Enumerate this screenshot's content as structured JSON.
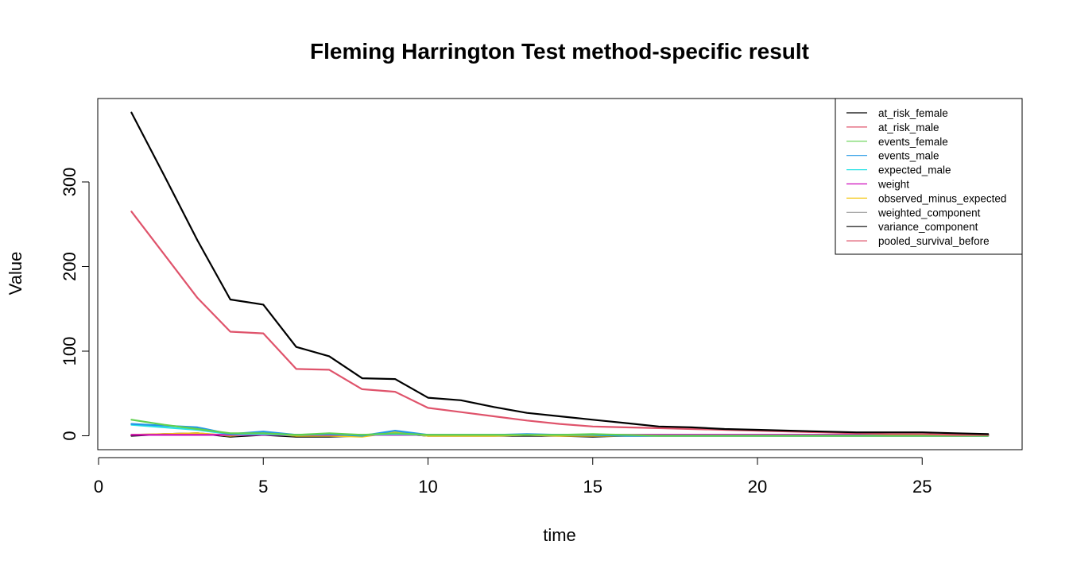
{
  "chart_data": {
    "type": "line",
    "title": "Fleming Harrington Test method-specific result",
    "xlabel": "time",
    "ylabel": "Value",
    "xlim": [
      0,
      28
    ],
    "ylim": [
      -15,
      400
    ],
    "xticks": [
      0,
      5,
      10,
      15,
      20,
      25
    ],
    "yticks": [
      0,
      100,
      200,
      300
    ],
    "legend_position": "top-right",
    "grid": false,
    "series": [
      {
        "name": "at_risk_female",
        "color": "#000000",
        "x": [
          1,
          2,
          3,
          4,
          5,
          6,
          7,
          8,
          9,
          10,
          11,
          12,
          13,
          14,
          15,
          16,
          17,
          18,
          19,
          20,
          21,
          22,
          23,
          24,
          25,
          26,
          27
        ],
        "values": [
          382,
          307,
          231,
          161,
          155,
          105,
          94,
          68,
          67,
          45,
          42,
          34,
          27,
          23,
          19,
          15,
          11,
          10,
          8,
          7,
          6,
          5,
          4,
          4,
          4,
          3,
          2
        ]
      },
      {
        "name": "at_risk_male",
        "color": "#DF536B",
        "x": [
          1,
          2,
          3,
          4,
          5,
          6,
          7,
          8,
          9,
          10,
          11,
          12,
          13,
          14,
          15,
          16,
          17,
          18,
          19,
          20,
          21,
          22,
          23,
          24,
          25,
          26,
          27
        ],
        "values": [
          265,
          214,
          163,
          123,
          121,
          79,
          78,
          55,
          52,
          33,
          28,
          23,
          18,
          14,
          11,
          10,
          9,
          8,
          7,
          6,
          5,
          4,
          3,
          2,
          2,
          1,
          1
        ]
      },
      {
        "name": "events_female",
        "color": "#61D04F",
        "x": [
          1,
          2,
          3,
          4,
          5,
          6,
          7,
          8,
          9,
          10,
          11,
          12,
          13,
          14,
          15,
          16,
          17,
          18,
          19,
          20,
          21,
          22,
          23,
          24,
          25,
          26,
          27
        ],
        "values": [
          19,
          13,
          8,
          3,
          3,
          1,
          3,
          1,
          3,
          1,
          1,
          1,
          1,
          1,
          2,
          1,
          0,
          0,
          0,
          0,
          0,
          0,
          0,
          0,
          0,
          0,
          0
        ]
      },
      {
        "name": "events_male",
        "color": "#2297E6",
        "x": [
          1,
          2,
          3,
          4,
          5,
          6,
          7,
          8,
          9,
          10,
          11,
          12,
          13,
          14,
          15,
          16,
          17,
          18,
          19,
          20,
          21,
          22,
          23,
          24,
          25,
          26,
          27
        ],
        "values": [
          14,
          12,
          10,
          2,
          5,
          1,
          2,
          0,
          6,
          1,
          1,
          1,
          2,
          1,
          1,
          0,
          0,
          0,
          0,
          0,
          0,
          0,
          0,
          0,
          0,
          0,
          0
        ]
      },
      {
        "name": "expected_male",
        "color": "#28E2E5",
        "x": [
          1,
          2,
          3,
          4,
          5,
          6,
          7,
          8,
          9,
          10,
          11,
          12,
          13,
          14,
          15,
          16,
          17,
          18,
          19,
          20,
          21,
          22,
          23,
          24,
          25,
          26,
          27
        ],
        "values": [
          13,
          10,
          7,
          2,
          2,
          1,
          2,
          1,
          2,
          1,
          1,
          1,
          1,
          1,
          1,
          0,
          0,
          0,
          0,
          0,
          0,
          0,
          0,
          0,
          0,
          0,
          0
        ]
      },
      {
        "name": "weight",
        "color": "#CD0BBC",
        "x": [
          1,
          2,
          3,
          4,
          5,
          6,
          7,
          8,
          9,
          10,
          11,
          12,
          13,
          14,
          15,
          16,
          17,
          18,
          19,
          20,
          21,
          22,
          23,
          24,
          25,
          26,
          27
        ],
        "values": [
          1,
          1,
          1,
          1,
          1,
          1,
          1,
          1,
          1,
          1,
          1,
          1,
          1,
          1,
          1,
          1,
          1,
          1,
          1,
          1,
          1,
          1,
          1,
          1,
          1,
          1,
          1
        ]
      },
      {
        "name": "observed_minus_expected",
        "color": "#F5C710",
        "x": [
          1,
          2,
          3,
          4,
          5,
          6,
          7,
          8,
          9,
          10,
          11,
          12,
          13,
          14,
          15,
          16,
          17,
          18,
          19,
          20,
          21,
          22,
          23,
          24,
          25,
          26,
          27
        ],
        "values": [
          1,
          2,
          3,
          0,
          3,
          0,
          0,
          -1,
          4,
          0,
          0,
          0,
          1,
          0,
          0,
          0,
          0,
          0,
          0,
          0,
          0,
          0,
          0,
          0,
          0,
          0,
          0
        ]
      },
      {
        "name": "weighted_component",
        "color": "#9E9E9E",
        "x": [
          1,
          2,
          3,
          4,
          5,
          6,
          7,
          8,
          9,
          10,
          11,
          12,
          13,
          14,
          15,
          16,
          17,
          18,
          19,
          20,
          21,
          22,
          23,
          24,
          25,
          26,
          27
        ],
        "values": [
          1,
          2,
          3,
          0,
          2,
          0,
          0,
          0,
          3,
          0,
          0,
          0,
          1,
          0,
          0,
          0,
          0,
          0,
          0,
          0,
          0,
          0,
          0,
          0,
          0,
          0,
          0
        ]
      },
      {
        "name": "variance_component",
        "color": "#000000",
        "x": [
          1,
          2,
          3,
          4,
          5,
          6,
          7,
          8,
          9,
          10,
          11,
          12,
          13,
          14,
          15,
          16,
          17,
          18,
          19,
          20,
          21,
          22,
          23,
          24,
          25,
          26,
          27
        ],
        "values": [
          0,
          2,
          3,
          -1,
          1,
          -1,
          -1,
          0,
          3,
          0,
          0,
          0,
          0,
          0,
          -1,
          0,
          0,
          0,
          0,
          0,
          0,
          0,
          0,
          0,
          0,
          0,
          0
        ]
      },
      {
        "name": "pooled_survival_before",
        "color": "#DF536B",
        "x": [
          1,
          2,
          3,
          4,
          5,
          6,
          7,
          8,
          9,
          10,
          11,
          12,
          13,
          14,
          15,
          16,
          17,
          18,
          19,
          20,
          21,
          22,
          23,
          24,
          25,
          26,
          27
        ],
        "values": [
          1,
          1,
          1,
          1,
          1,
          1,
          1,
          1,
          1,
          1,
          1,
          1,
          1,
          1,
          1,
          1,
          1,
          1,
          1,
          1,
          1,
          1,
          1,
          1,
          1,
          1,
          1
        ]
      }
    ]
  }
}
